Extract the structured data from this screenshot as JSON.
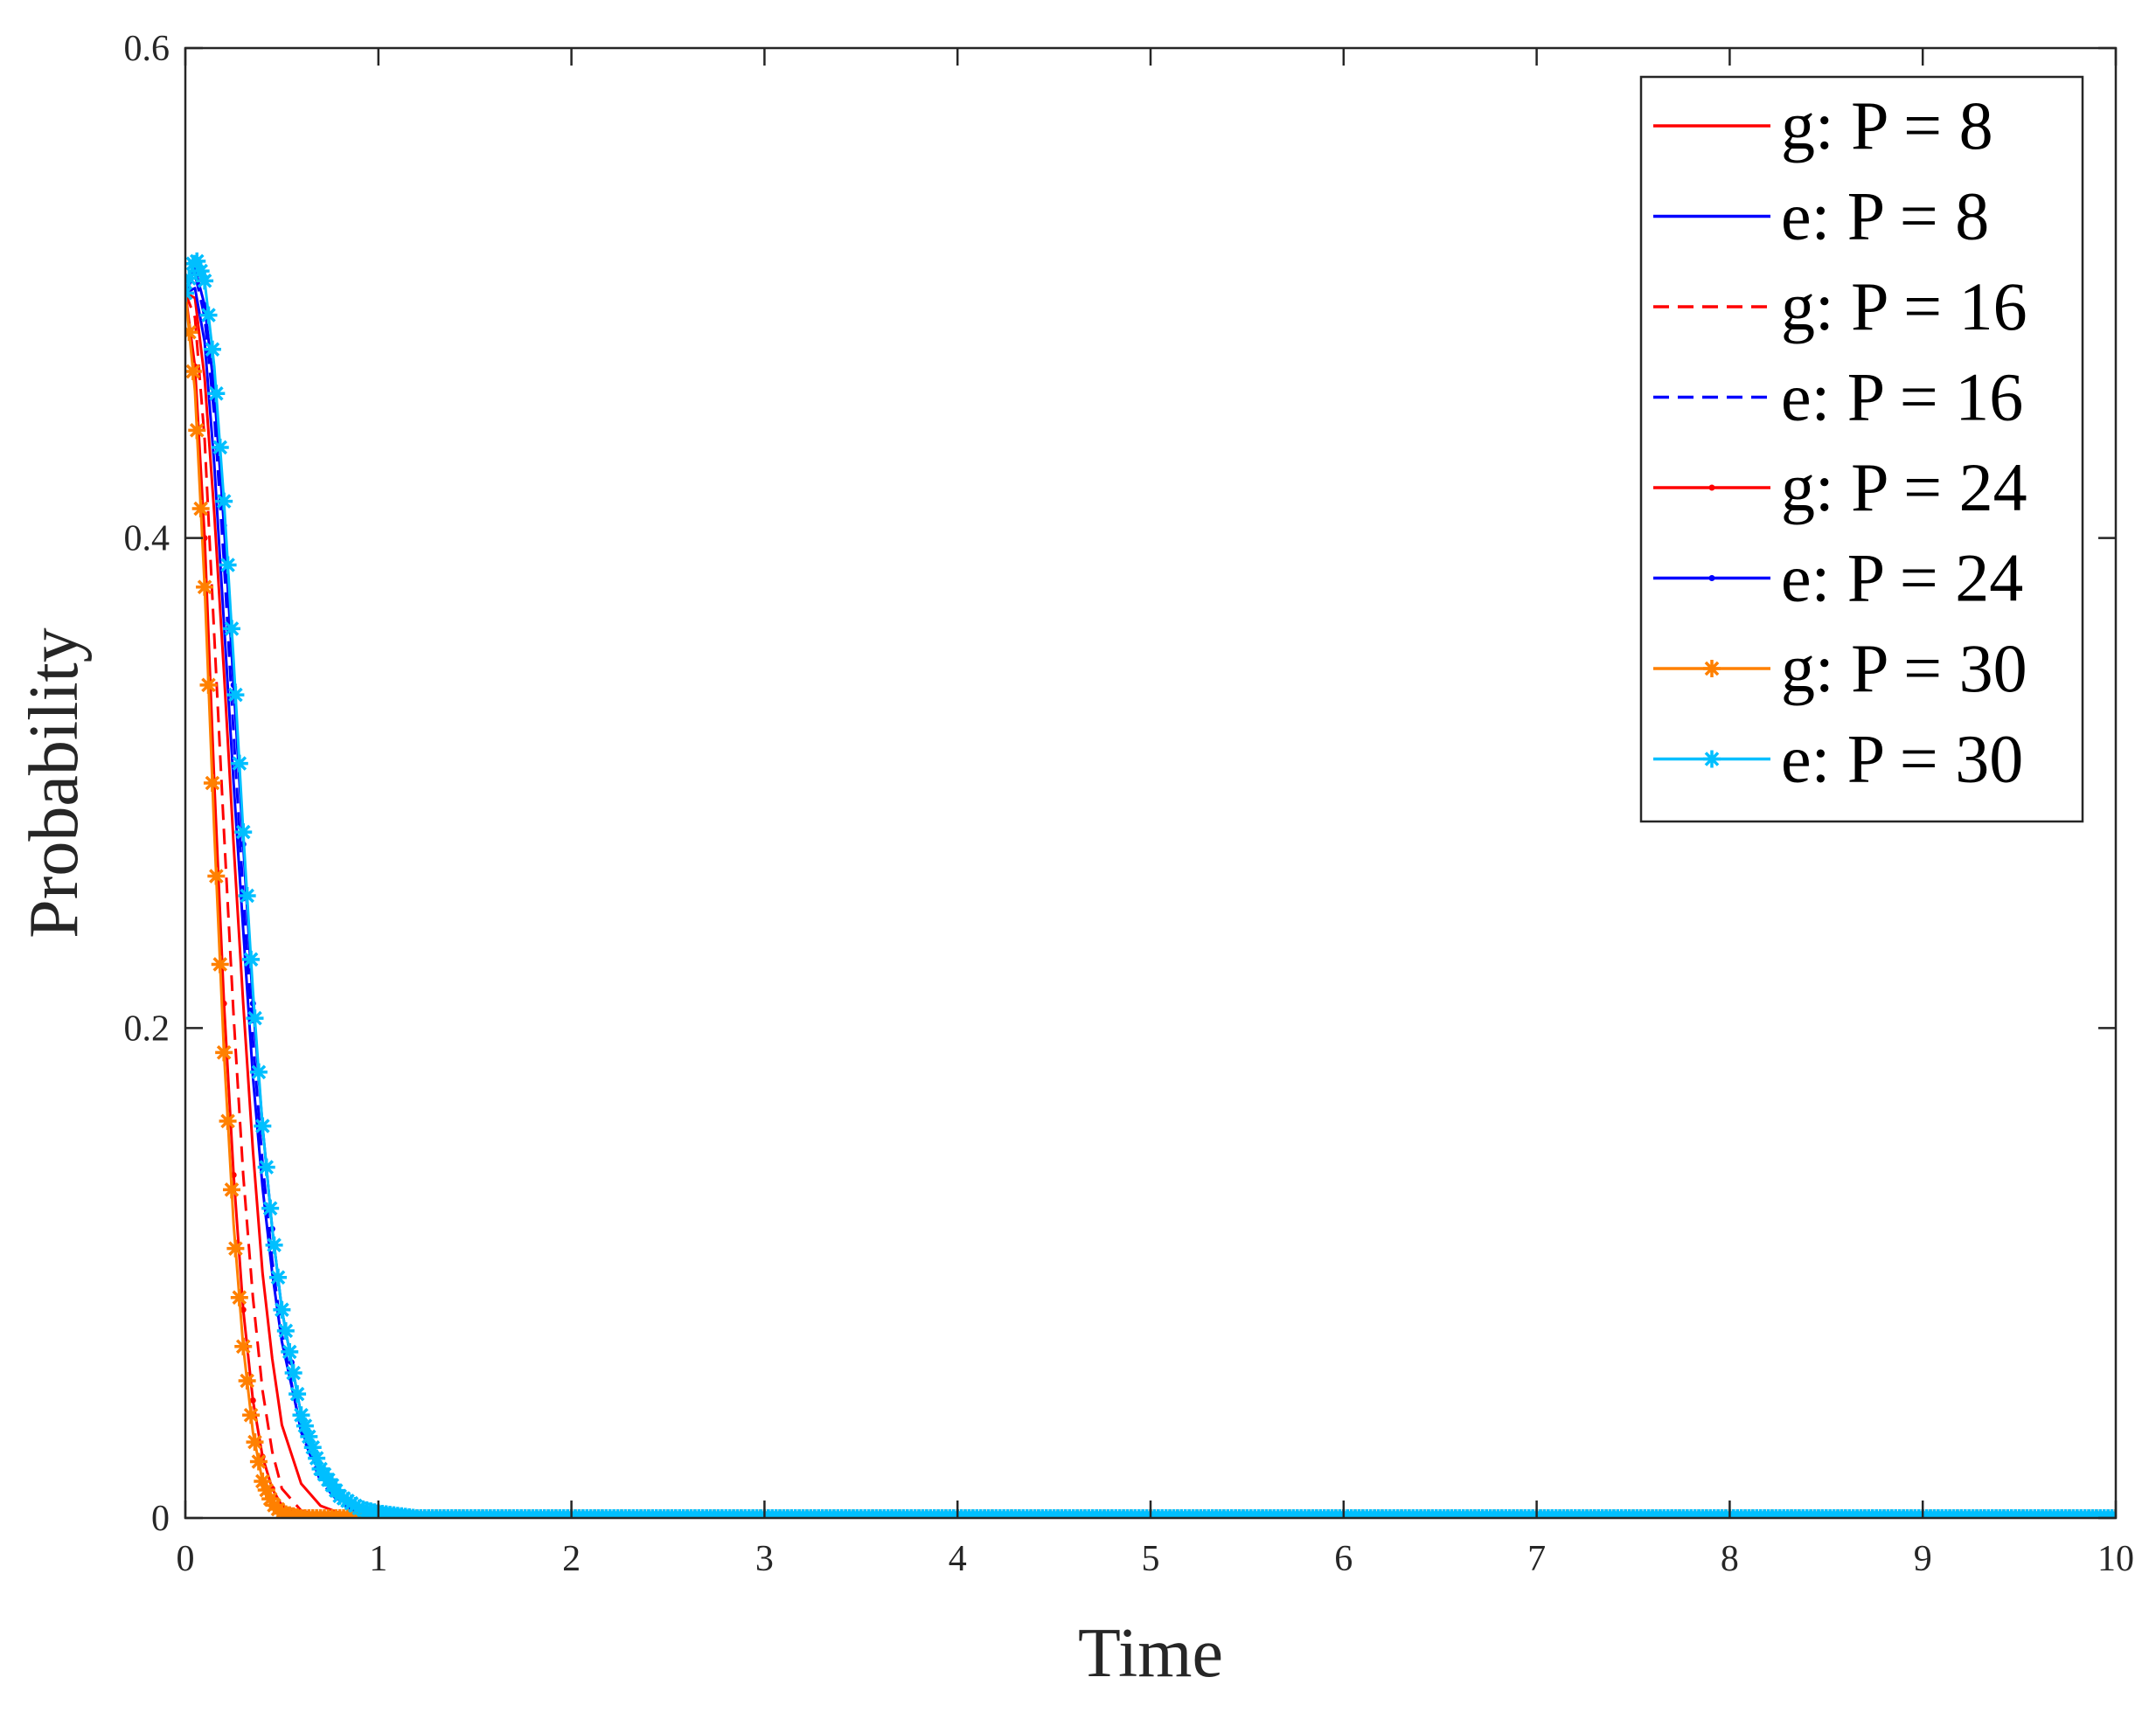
{
  "chart_data": {
    "type": "line",
    "title": "",
    "xlabel": "Time",
    "ylabel": "Probability",
    "xlim": [
      0,
      10
    ],
    "ylim": [
      0,
      0.6
    ],
    "x_ticks": [
      "0",
      "1",
      "2",
      "3",
      "4",
      "5",
      "6",
      "7",
      "8",
      "9",
      "10"
    ],
    "y_ticks": [
      "0",
      "0.2",
      "0.4",
      "0.6"
    ],
    "grid": false,
    "legend_position": "top-right",
    "series": [
      {
        "name": "g: P = 8",
        "color": "#ff0000",
        "line_style": "solid",
        "marker": "none",
        "x": [
          0,
          0.05,
          0.1,
          0.15,
          0.2,
          0.25,
          0.3,
          0.35,
          0.4,
          0.45,
          0.5,
          0.6,
          0.7,
          0.8,
          0.9,
          1.0,
          1.2,
          1.5,
          2,
          3,
          10
        ],
        "y": [
          0.5,
          0.498,
          0.465,
          0.41,
          0.345,
          0.275,
          0.21,
          0.15,
          0.1,
          0.065,
          0.038,
          0.014,
          0.005,
          0.002,
          0.001,
          0,
          0,
          0,
          0,
          0,
          0
        ]
      },
      {
        "name": "e: P = 8",
        "color": "#0000ff",
        "line_style": "solid",
        "marker": "none",
        "x": [
          0,
          0.05,
          0.1,
          0.15,
          0.2,
          0.25,
          0.3,
          0.35,
          0.4,
          0.45,
          0.5,
          0.6,
          0.7,
          0.8,
          0.9,
          1.0,
          1.2,
          1.5,
          2,
          3,
          10
        ],
        "y": [
          0.5,
          0.502,
          0.48,
          0.43,
          0.365,
          0.3,
          0.24,
          0.18,
          0.135,
          0.1,
          0.072,
          0.036,
          0.017,
          0.008,
          0.003,
          0.001,
          0,
          0,
          0,
          0,
          0
        ]
      },
      {
        "name": "g: P = 16",
        "color": "#ff0000",
        "line_style": "dashed",
        "marker": "none",
        "x": [
          0,
          0.05,
          0.1,
          0.15,
          0.2,
          0.25,
          0.3,
          0.35,
          0.4,
          0.45,
          0.5,
          0.6,
          0.7,
          0.8,
          0.9,
          1.0,
          1.2,
          1.5,
          2,
          3,
          10
        ],
        "y": [
          0.5,
          0.49,
          0.44,
          0.36,
          0.28,
          0.205,
          0.14,
          0.09,
          0.052,
          0.027,
          0.012,
          0.003,
          0.001,
          0,
          0,
          0,
          0,
          0,
          0,
          0,
          0
        ]
      },
      {
        "name": "e: P = 16",
        "color": "#0000ff",
        "line_style": "dashed",
        "marker": "none",
        "x": [
          0,
          0.05,
          0.1,
          0.15,
          0.2,
          0.25,
          0.3,
          0.35,
          0.4,
          0.45,
          0.5,
          0.6,
          0.7,
          0.8,
          0.9,
          1.0,
          1.2,
          1.5,
          2,
          3,
          10
        ],
        "y": [
          0.5,
          0.508,
          0.49,
          0.45,
          0.39,
          0.32,
          0.255,
          0.195,
          0.145,
          0.105,
          0.075,
          0.035,
          0.015,
          0.006,
          0.002,
          0.001,
          0,
          0,
          0,
          0,
          0
        ]
      },
      {
        "name": "g: P = 24",
        "color": "#ff0000",
        "line_style": "solid",
        "marker": "dot",
        "x": [
          0,
          0.05,
          0.1,
          0.15,
          0.2,
          0.25,
          0.3,
          0.35,
          0.4,
          0.45,
          0.5,
          0.6,
          0.7,
          0.8,
          0.9,
          1.0,
          1.2,
          1.5,
          2,
          3,
          10
        ],
        "y": [
          0.5,
          0.47,
          0.4,
          0.3,
          0.21,
          0.14,
          0.085,
          0.048,
          0.025,
          0.012,
          0.005,
          0.001,
          0,
          0,
          0,
          0,
          0,
          0,
          0,
          0,
          0
        ]
      },
      {
        "name": "e: P = 24",
        "color": "#0000ff",
        "line_style": "solid",
        "marker": "dot",
        "x": [
          0,
          0.05,
          0.1,
          0.15,
          0.2,
          0.25,
          0.3,
          0.35,
          0.4,
          0.45,
          0.5,
          0.6,
          0.7,
          0.8,
          0.9,
          1.0,
          1.2,
          1.5,
          2,
          3,
          10
        ],
        "y": [
          0.5,
          0.51,
          0.495,
          0.46,
          0.405,
          0.34,
          0.275,
          0.21,
          0.16,
          0.118,
          0.085,
          0.042,
          0.019,
          0.008,
          0.003,
          0.001,
          0,
          0,
          0,
          0,
          0
        ]
      },
      {
        "name": "g: P = 30",
        "color": "#ff8000",
        "line_style": "solid",
        "marker": "star",
        "x": [
          0,
          0.05,
          0.1,
          0.15,
          0.2,
          0.25,
          0.3,
          0.35,
          0.4,
          0.45,
          0.5,
          0.6,
          0.7,
          0.8,
          0.9,
          1.0,
          1.2,
          1.5,
          2,
          3,
          10
        ],
        "y": [
          0.5,
          0.46,
          0.38,
          0.28,
          0.19,
          0.12,
          0.07,
          0.035,
          0.015,
          0.006,
          0.002,
          0,
          0,
          0,
          0,
          0,
          0,
          0,
          0,
          0,
          0
        ]
      },
      {
        "name": "e: P = 30",
        "color": "#00bfff",
        "line_style": "solid",
        "marker": "star",
        "x": [
          0,
          0.05,
          0.1,
          0.15,
          0.2,
          0.25,
          0.3,
          0.35,
          0.4,
          0.45,
          0.5,
          0.6,
          0.7,
          0.8,
          0.9,
          1.0,
          1.2,
          1.5,
          2,
          3,
          10
        ],
        "y": [
          0.5,
          0.515,
          0.505,
          0.47,
          0.415,
          0.35,
          0.28,
          0.215,
          0.16,
          0.118,
          0.085,
          0.042,
          0.02,
          0.009,
          0.004,
          0.002,
          0,
          0,
          0,
          0,
          0
        ]
      }
    ]
  }
}
